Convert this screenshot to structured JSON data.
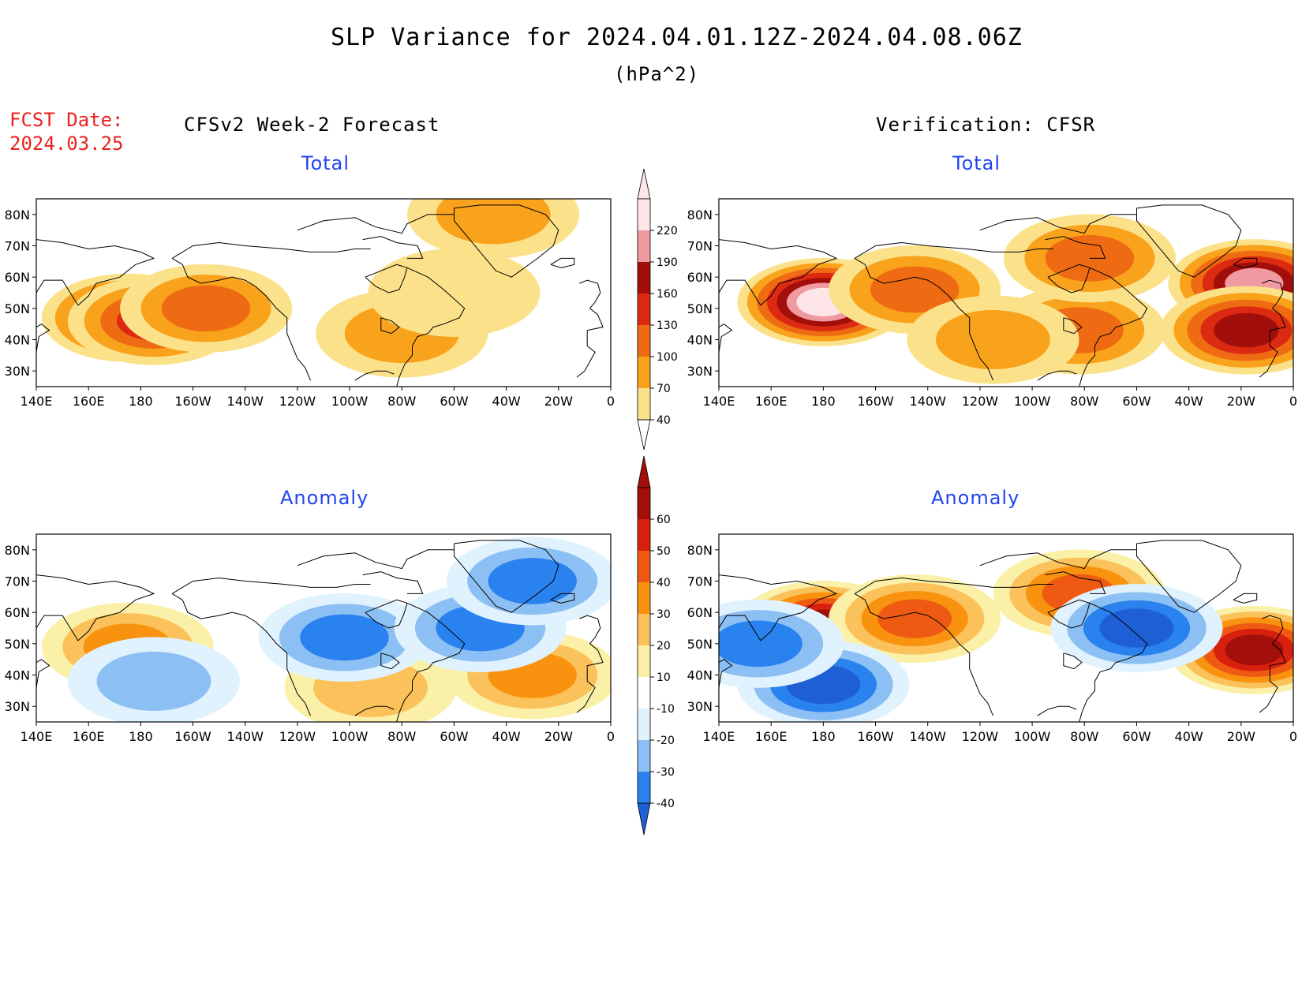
{
  "header": {
    "title": "SLP Variance for 2024.04.01.12Z-2024.04.08.06Z",
    "units": "(hPa^2)",
    "fcst_label": "FCST Date:",
    "fcst_date": "2024.03.25",
    "left_column_title": "CFSv2 Week-2 Forecast",
    "right_column_title": "Verification: CFSR"
  },
  "panels": {
    "top_left_title": "Total",
    "top_right_title": "Total",
    "bottom_left_title": "Anomaly",
    "bottom_right_title": "Anomaly"
  },
  "axes": {
    "lat_labels": [
      "80N",
      "70N",
      "60N",
      "50N",
      "40N",
      "30N"
    ],
    "lon_labels": [
      "140E",
      "160E",
      "180",
      "160W",
      "140W",
      "120W",
      "100W",
      "80W",
      "60W",
      "40W",
      "20W",
      "0"
    ]
  },
  "colorbars": {
    "total": {
      "levels": [
        "40",
        "70",
        "100",
        "130",
        "160",
        "190",
        "220"
      ],
      "colors": [
        "#fbe28a",
        "#f9a21c",
        "#ee6a13",
        "#dc2a12",
        "#a20f0a",
        "#ef9aa0",
        "#fde5e8"
      ]
    },
    "anomaly": {
      "levels": [
        "-40",
        "-30",
        "-20",
        "-10",
        "10",
        "20",
        "30",
        "40",
        "50",
        "60"
      ],
      "colors": [
        "#1e5fd6",
        "#2a82ee",
        "#8cc0f4",
        "#dff2fd",
        "#ffffff",
        "#fbf0a8",
        "#fbc15a",
        "#f9930f",
        "#ee5a13",
        "#d8200f",
        "#a30f0a"
      ]
    }
  },
  "chart_data": [
    {
      "type": "heatmap",
      "title": "Total",
      "subtitle": "CFSv2 Week-2 Forecast",
      "xlim": [
        140,
        360
      ],
      "ylim": [
        25,
        85
      ],
      "features": [
        {
          "lon": 175,
          "lat": 47,
          "value": 160
        },
        {
          "lon": 185,
          "lat": 46,
          "value": 130
        },
        {
          "lon": 205,
          "lat": 50,
          "value": 100
        },
        {
          "lon": 280,
          "lat": 42,
          "value": 85
        },
        {
          "lon": 315,
          "lat": 80,
          "value": 85
        },
        {
          "lon": 300,
          "lat": 55,
          "value": 55
        }
      ]
    },
    {
      "type": "heatmap",
      "title": "Total",
      "subtitle": "Verification: CFSR",
      "xlim": [
        140,
        360
      ],
      "ylim": [
        25,
        85
      ],
      "features": [
        {
          "lon": 180,
          "lat": 52,
          "value": 230
        },
        {
          "lon": 215,
          "lat": 56,
          "value": 110
        },
        {
          "lon": 345,
          "lat": 58,
          "value": 200
        },
        {
          "lon": 342,
          "lat": 43,
          "value": 160
        },
        {
          "lon": 278,
          "lat": 43,
          "value": 120
        },
        {
          "lon": 282,
          "lat": 66,
          "value": 100
        },
        {
          "lon": 245,
          "lat": 40,
          "value": 90
        }
      ]
    },
    {
      "type": "heatmap",
      "title": "Anomaly",
      "subtitle": "CFSv2 Week-2 Forecast",
      "xlim": [
        140,
        360
      ],
      "ylim": [
        25,
        85
      ],
      "features": [
        {
          "lon": 175,
          "lat": 49,
          "value": 30
        },
        {
          "lon": 330,
          "lat": 40,
          "value": 35
        },
        {
          "lon": 268,
          "lat": 36,
          "value": 25
        },
        {
          "lon": 258,
          "lat": 52,
          "value": -35
        },
        {
          "lon": 310,
          "lat": 55,
          "value": -32
        },
        {
          "lon": 185,
          "lat": 38,
          "value": -20
        },
        {
          "lon": 330,
          "lat": 70,
          "value": -30
        }
      ]
    },
    {
      "type": "heatmap",
      "title": "Anomaly",
      "subtitle": "Verification: CFSR",
      "xlim": [
        140,
        360
      ],
      "ylim": [
        25,
        85
      ],
      "features": [
        {
          "lon": 180,
          "lat": 56,
          "value": 60
        },
        {
          "lon": 345,
          "lat": 48,
          "value": 60
        },
        {
          "lon": 278,
          "lat": 66,
          "value": 45
        },
        {
          "lon": 215,
          "lat": 58,
          "value": 40
        },
        {
          "lon": 180,
          "lat": 37,
          "value": -45
        },
        {
          "lon": 300,
          "lat": 55,
          "value": -40
        },
        {
          "lon": 155,
          "lat": 50,
          "value": -35
        }
      ]
    }
  ]
}
